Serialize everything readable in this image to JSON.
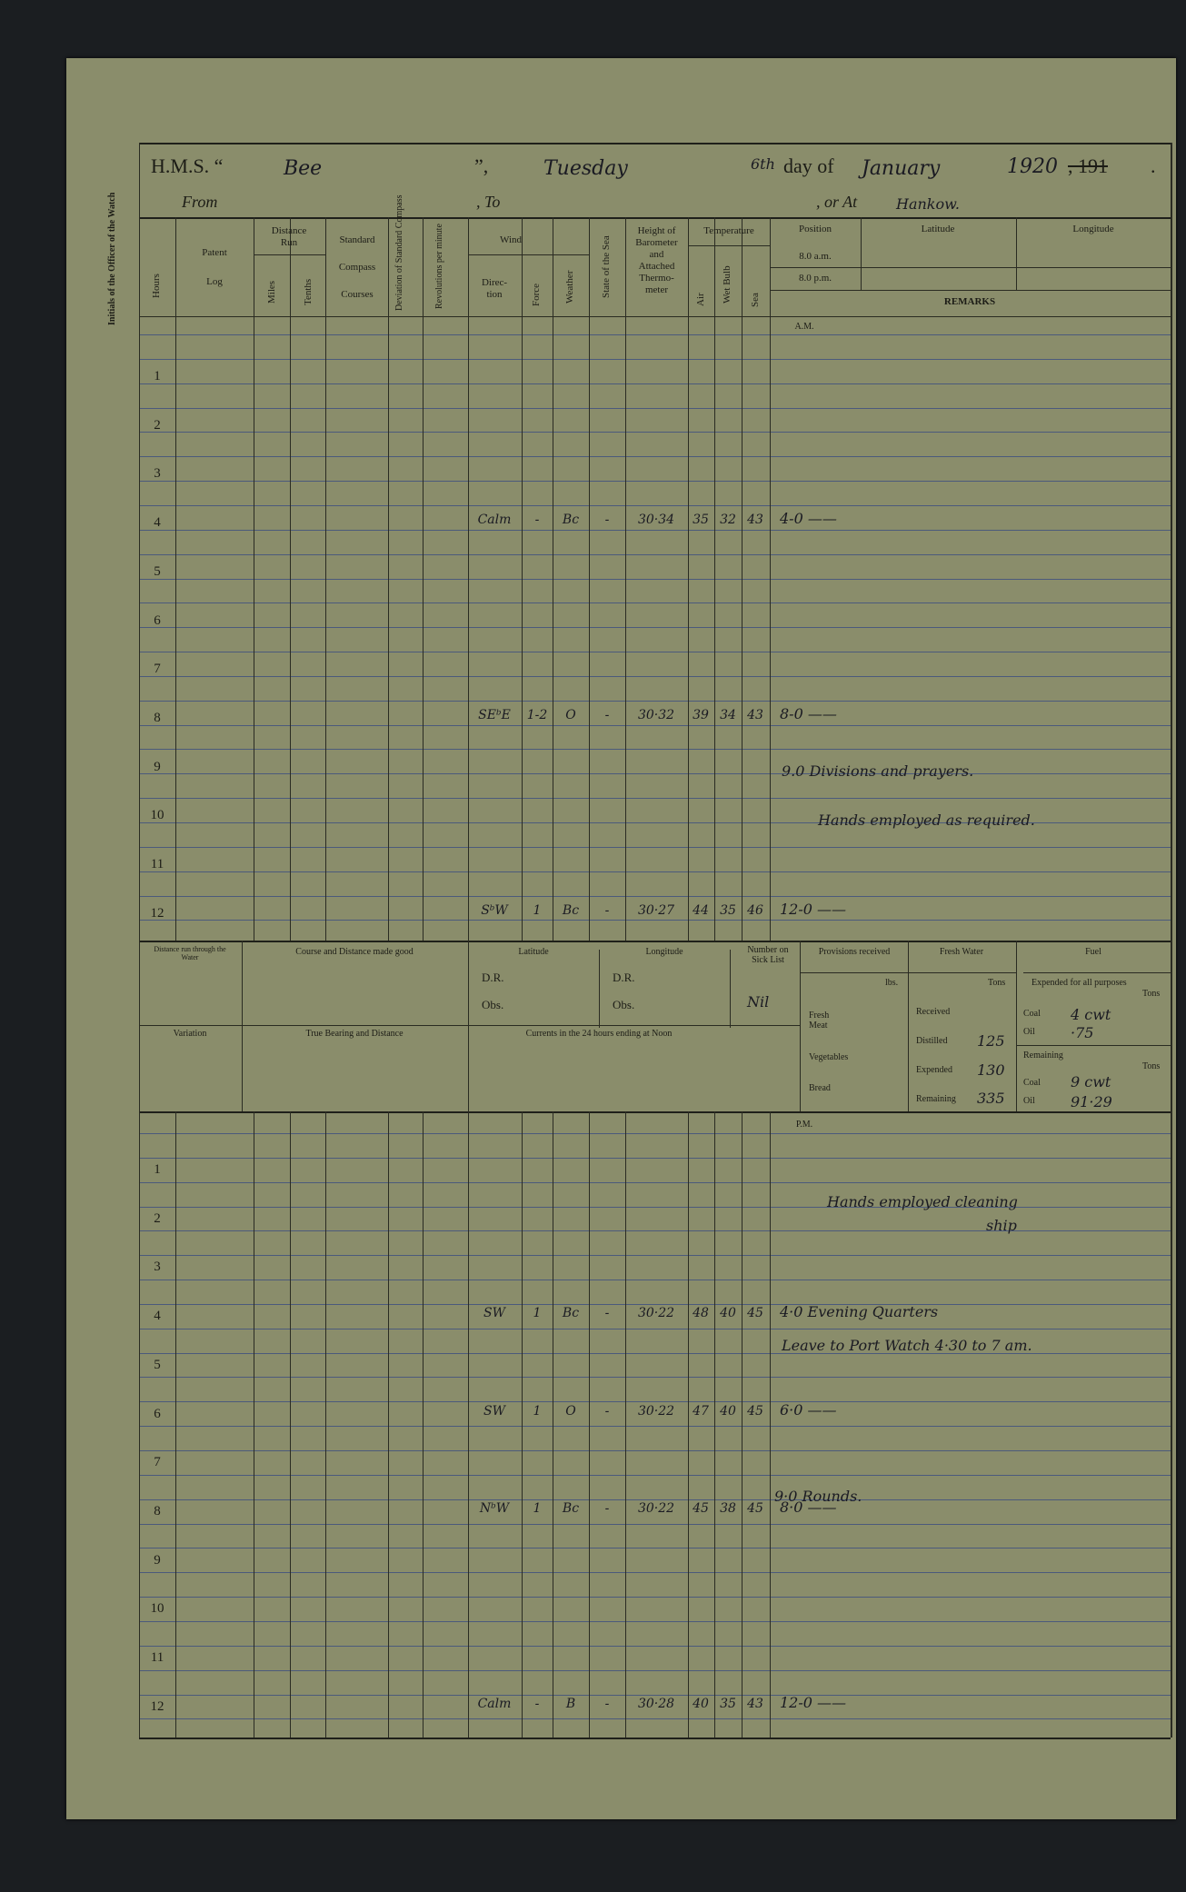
{
  "header": {
    "hms_label": "H.M.S. “",
    "ship_name": "Bee",
    "close_quote": "”,",
    "weekday": "Tuesday",
    "day": "6th",
    "day_of_label": "day of",
    "month": "January",
    "year_written": "1920",
    "year_printed_struck": ", 191",
    "period": ".",
    "from_label": "From",
    "to_label": ", To",
    "or_at_label": ", or At",
    "or_at_value": "Hankow."
  },
  "side_label": "Initials of the Officer of the Watch",
  "columns": {
    "hours": "Hours",
    "patent": "Patent",
    "log": "Log",
    "distance_run": [
      "Distance",
      "Run"
    ],
    "miles": "Miles",
    "tenths": "Tenths",
    "standard_compass": [
      "Standard",
      "Compass",
      "Courses"
    ],
    "deviation": "Deviation of Standard Compass",
    "revolutions": "Revolutions per minute",
    "wind": "Wind",
    "direction": [
      "Direc-",
      "tion"
    ],
    "force": "Force",
    "weather": "Weather",
    "state_of_sea": "State of the Sea",
    "barometer": [
      "Height of",
      "Barometer",
      "and",
      "Attached",
      "Thermo-",
      "meter"
    ],
    "temperature": "Temperature",
    "air": "Air",
    "wet_bulb": "Wet Bulb",
    "sea": "Sea",
    "position": "Position",
    "am_time": "8.0 a.m.",
    "pm_time": "8.0 p.m.",
    "latitude": "Latitude",
    "longitude": "Longitude",
    "remarks": "REMARKS"
  },
  "am_label": "A.M.",
  "pm_label": "P.M.",
  "hours": [
    "1",
    "2",
    "3",
    "4",
    "5",
    "6",
    "7",
    "8",
    "9",
    "10",
    "11",
    "12"
  ],
  "am_entries": [
    {
      "hour": 4,
      "direction": "Calm",
      "force": "-",
      "weather": "Bc",
      "sea_state": "-",
      "barometer": "30·34",
      "air": "35",
      "wet_bulb": "32",
      "sea": "43",
      "remark": "4-0 ——"
    },
    {
      "hour": 8,
      "direction": "SEᵇE",
      "force": "1-2",
      "weather": "O",
      "sea_state": "-",
      "barometer": "30·32",
      "air": "39",
      "wet_bulb": "34",
      "sea": "43",
      "remark": "8-0 ——"
    },
    {
      "hour": 12,
      "direction": "SᵇW",
      "force": "1",
      "weather": "Bc",
      "sea_state": "-",
      "barometer": "30·27",
      "air": "44",
      "wet_bulb": "35",
      "sea": "46",
      "remark": "12-0 ——"
    }
  ],
  "am_remarks": {
    "r9": "9.0 Divisions and prayers.",
    "r10": "Hands employed as required."
  },
  "pm_entries": [
    {
      "hour": 4,
      "direction": "SW",
      "force": "1",
      "weather": "Bc",
      "sea_state": "-",
      "barometer": "30·22",
      "air": "48",
      "wet_bulb": "40",
      "sea": "45",
      "remark": "4·0 Evening Quarters"
    },
    {
      "hour": 6,
      "direction": "SW",
      "force": "1",
      "weather": "O",
      "sea_state": "-",
      "barometer": "30·22",
      "air": "47",
      "wet_bulb": "40",
      "sea": "45",
      "remark": "6·0 ——"
    },
    {
      "hour": 8,
      "direction": "NᵇW",
      "force": "1",
      "weather": "Bc",
      "sea_state": "-",
      "barometer": "30·22",
      "air": "45",
      "wet_bulb": "38",
      "sea": "45",
      "remark": "8·0 ——"
    },
    {
      "hour": 12,
      "direction": "Calm",
      "force": "-",
      "weather": "B",
      "sea_state": "-",
      "barometer": "30·28",
      "air": "40",
      "wet_bulb": "35",
      "sea": "43",
      "remark": "12-0 ——"
    }
  ],
  "pm_remarks": {
    "r2a": "Hands employed cleaning",
    "r2b": "ship",
    "r5": "Leave to Port Watch 4·30 to 7 am.",
    "r9": "9·0 Rounds."
  },
  "noon": {
    "distance_through_water": "Distance run through the Water",
    "course_distance": "Course and Distance made good",
    "latitude": "Latitude",
    "longitude": "Longitude",
    "dr": "D.R.",
    "obs": "Obs.",
    "sick_list": [
      "Number on",
      "Sick List"
    ],
    "sick_list_value": "Nil",
    "variation": "Variation",
    "true_bearing": "True Bearing and Distance",
    "currents": "Currents in the 24 hours ending at Noon",
    "provisions": "Provisions received",
    "lbs": "lbs.",
    "fresh_meat": [
      "Fresh",
      "Meat"
    ],
    "vegetables": "Vegetables",
    "bread": "Bread",
    "fresh_water": "Fresh Water",
    "tons": "Tons",
    "received": "Received",
    "distilled": "Distilled",
    "distilled_value": "125",
    "expended": "Expended",
    "expended_value": "130",
    "remaining": "Remaining",
    "remaining_value": "335",
    "fuel": "Fuel",
    "expended_all": "Expended for all purposes",
    "coal": "Coal",
    "oil": "Oil",
    "coal_expended": "4 cwt",
    "oil_expended": "·75",
    "fuel_remaining": "Remaining",
    "coal_remaining": "9 cwt",
    "oil_remaining": "91·29"
  }
}
